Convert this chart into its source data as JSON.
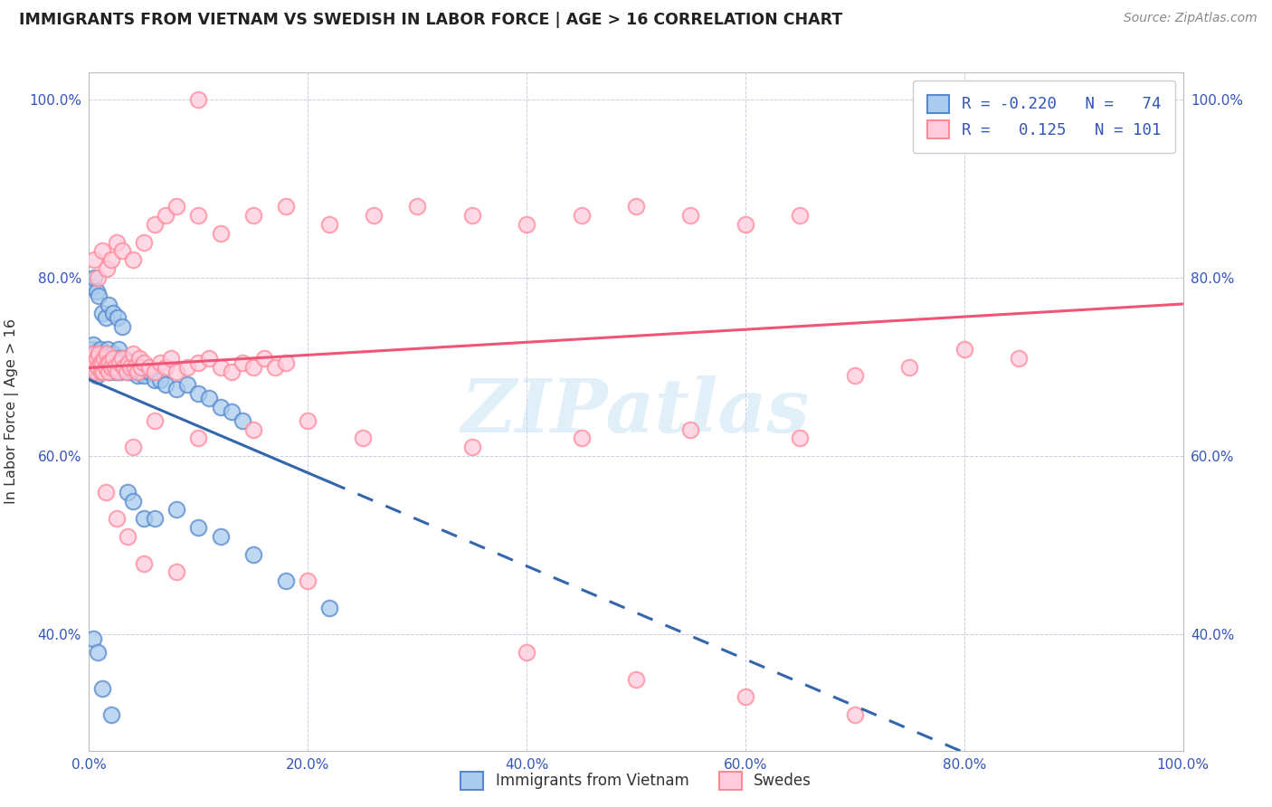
{
  "title": "IMMIGRANTS FROM VIETNAM VS SWEDISH IN LABOR FORCE | AGE > 16 CORRELATION CHART",
  "source_text": "Source: ZipAtlas.com",
  "ylabel": "In Labor Force | Age > 16",
  "xmin": 0.0,
  "xmax": 1.0,
  "ymin": 0.27,
  "ymax": 1.03,
  "xtick_labels": [
    "0.0%",
    "20.0%",
    "40.0%",
    "60.0%",
    "80.0%",
    "100.0%"
  ],
  "xtick_vals": [
    0.0,
    0.2,
    0.4,
    0.6,
    0.8,
    1.0
  ],
  "ytick_labels": [
    "40.0%",
    "60.0%",
    "80.0%",
    "100.0%"
  ],
  "ytick_vals": [
    0.4,
    0.6,
    0.8,
    1.0
  ],
  "blue_color": "#5588CC",
  "pink_color": "#FF8899",
  "blue_fill": "#AACCEE",
  "pink_fill": "#FFCCDD",
  "trend_blue": "#3366AA",
  "trend_pink": "#EE5577",
  "R_blue": -0.22,
  "N_blue": 74,
  "R_pink": 0.125,
  "N_pink": 101,
  "legend_label_blue": "Immigrants from Vietnam",
  "legend_label_pink": "Swedes",
  "watermark": "ZIPatlas",
  "blue_scatter_x": [
    0.002,
    0.003,
    0.004,
    0.005,
    0.006,
    0.007,
    0.008,
    0.009,
    0.01,
    0.011,
    0.012,
    0.013,
    0.014,
    0.015,
    0.016,
    0.017,
    0.018,
    0.019,
    0.02,
    0.021,
    0.022,
    0.023,
    0.024,
    0.025,
    0.026,
    0.027,
    0.028,
    0.029,
    0.03,
    0.032,
    0.034,
    0.036,
    0.038,
    0.04,
    0.042,
    0.044,
    0.046,
    0.048,
    0.05,
    0.055,
    0.06,
    0.065,
    0.07,
    0.08,
    0.09,
    0.1,
    0.11,
    0.12,
    0.13,
    0.14,
    0.003,
    0.005,
    0.007,
    0.009,
    0.012,
    0.015,
    0.018,
    0.022,
    0.026,
    0.03,
    0.035,
    0.04,
    0.05,
    0.06,
    0.08,
    0.1,
    0.12,
    0.15,
    0.18,
    0.22,
    0.004,
    0.008,
    0.012,
    0.02
  ],
  "blue_scatter_y": [
    0.72,
    0.71,
    0.725,
    0.715,
    0.7,
    0.69,
    0.705,
    0.715,
    0.72,
    0.71,
    0.695,
    0.705,
    0.715,
    0.7,
    0.71,
    0.72,
    0.705,
    0.695,
    0.71,
    0.7,
    0.715,
    0.705,
    0.695,
    0.71,
    0.7,
    0.72,
    0.71,
    0.695,
    0.705,
    0.71,
    0.7,
    0.695,
    0.705,
    0.695,
    0.7,
    0.69,
    0.695,
    0.7,
    0.69,
    0.695,
    0.685,
    0.685,
    0.68,
    0.675,
    0.68,
    0.67,
    0.665,
    0.655,
    0.65,
    0.64,
    0.79,
    0.8,
    0.785,
    0.78,
    0.76,
    0.755,
    0.77,
    0.76,
    0.755,
    0.745,
    0.56,
    0.55,
    0.53,
    0.53,
    0.54,
    0.52,
    0.51,
    0.49,
    0.46,
    0.43,
    0.395,
    0.38,
    0.34,
    0.31
  ],
  "pink_scatter_x": [
    0.002,
    0.003,
    0.004,
    0.005,
    0.006,
    0.007,
    0.008,
    0.009,
    0.01,
    0.011,
    0.012,
    0.013,
    0.014,
    0.015,
    0.016,
    0.017,
    0.018,
    0.019,
    0.02,
    0.022,
    0.024,
    0.026,
    0.028,
    0.03,
    0.032,
    0.034,
    0.036,
    0.038,
    0.04,
    0.042,
    0.044,
    0.046,
    0.048,
    0.05,
    0.055,
    0.06,
    0.065,
    0.07,
    0.075,
    0.08,
    0.09,
    0.1,
    0.11,
    0.12,
    0.13,
    0.14,
    0.15,
    0.16,
    0.17,
    0.18,
    0.005,
    0.008,
    0.012,
    0.016,
    0.02,
    0.025,
    0.03,
    0.04,
    0.05,
    0.06,
    0.07,
    0.08,
    0.1,
    0.12,
    0.15,
    0.18,
    0.22,
    0.26,
    0.3,
    0.35,
    0.4,
    0.45,
    0.5,
    0.55,
    0.6,
    0.65,
    0.7,
    0.75,
    0.8,
    0.85,
    0.04,
    0.06,
    0.1,
    0.15,
    0.2,
    0.25,
    0.35,
    0.45,
    0.55,
    0.65,
    0.015,
    0.025,
    0.035,
    0.05,
    0.08,
    0.2,
    0.4,
    0.5,
    0.6,
    0.7,
    0.1
  ],
  "pink_scatter_y": [
    0.71,
    0.7,
    0.715,
    0.705,
    0.695,
    0.71,
    0.7,
    0.715,
    0.705,
    0.695,
    0.705,
    0.695,
    0.71,
    0.7,
    0.715,
    0.705,
    0.695,
    0.705,
    0.7,
    0.71,
    0.7,
    0.695,
    0.705,
    0.71,
    0.7,
    0.695,
    0.705,
    0.7,
    0.715,
    0.7,
    0.695,
    0.71,
    0.7,
    0.705,
    0.7,
    0.695,
    0.705,
    0.7,
    0.71,
    0.695,
    0.7,
    0.705,
    0.71,
    0.7,
    0.695,
    0.705,
    0.7,
    0.71,
    0.7,
    0.705,
    0.82,
    0.8,
    0.83,
    0.81,
    0.82,
    0.84,
    0.83,
    0.82,
    0.84,
    0.86,
    0.87,
    0.88,
    0.87,
    0.85,
    0.87,
    0.88,
    0.86,
    0.87,
    0.88,
    0.87,
    0.86,
    0.87,
    0.88,
    0.87,
    0.86,
    0.87,
    0.69,
    0.7,
    0.72,
    0.71,
    0.61,
    0.64,
    0.62,
    0.63,
    0.64,
    0.62,
    0.61,
    0.62,
    0.63,
    0.62,
    0.56,
    0.53,
    0.51,
    0.48,
    0.47,
    0.46,
    0.38,
    0.35,
    0.33,
    0.31,
    1.0
  ]
}
